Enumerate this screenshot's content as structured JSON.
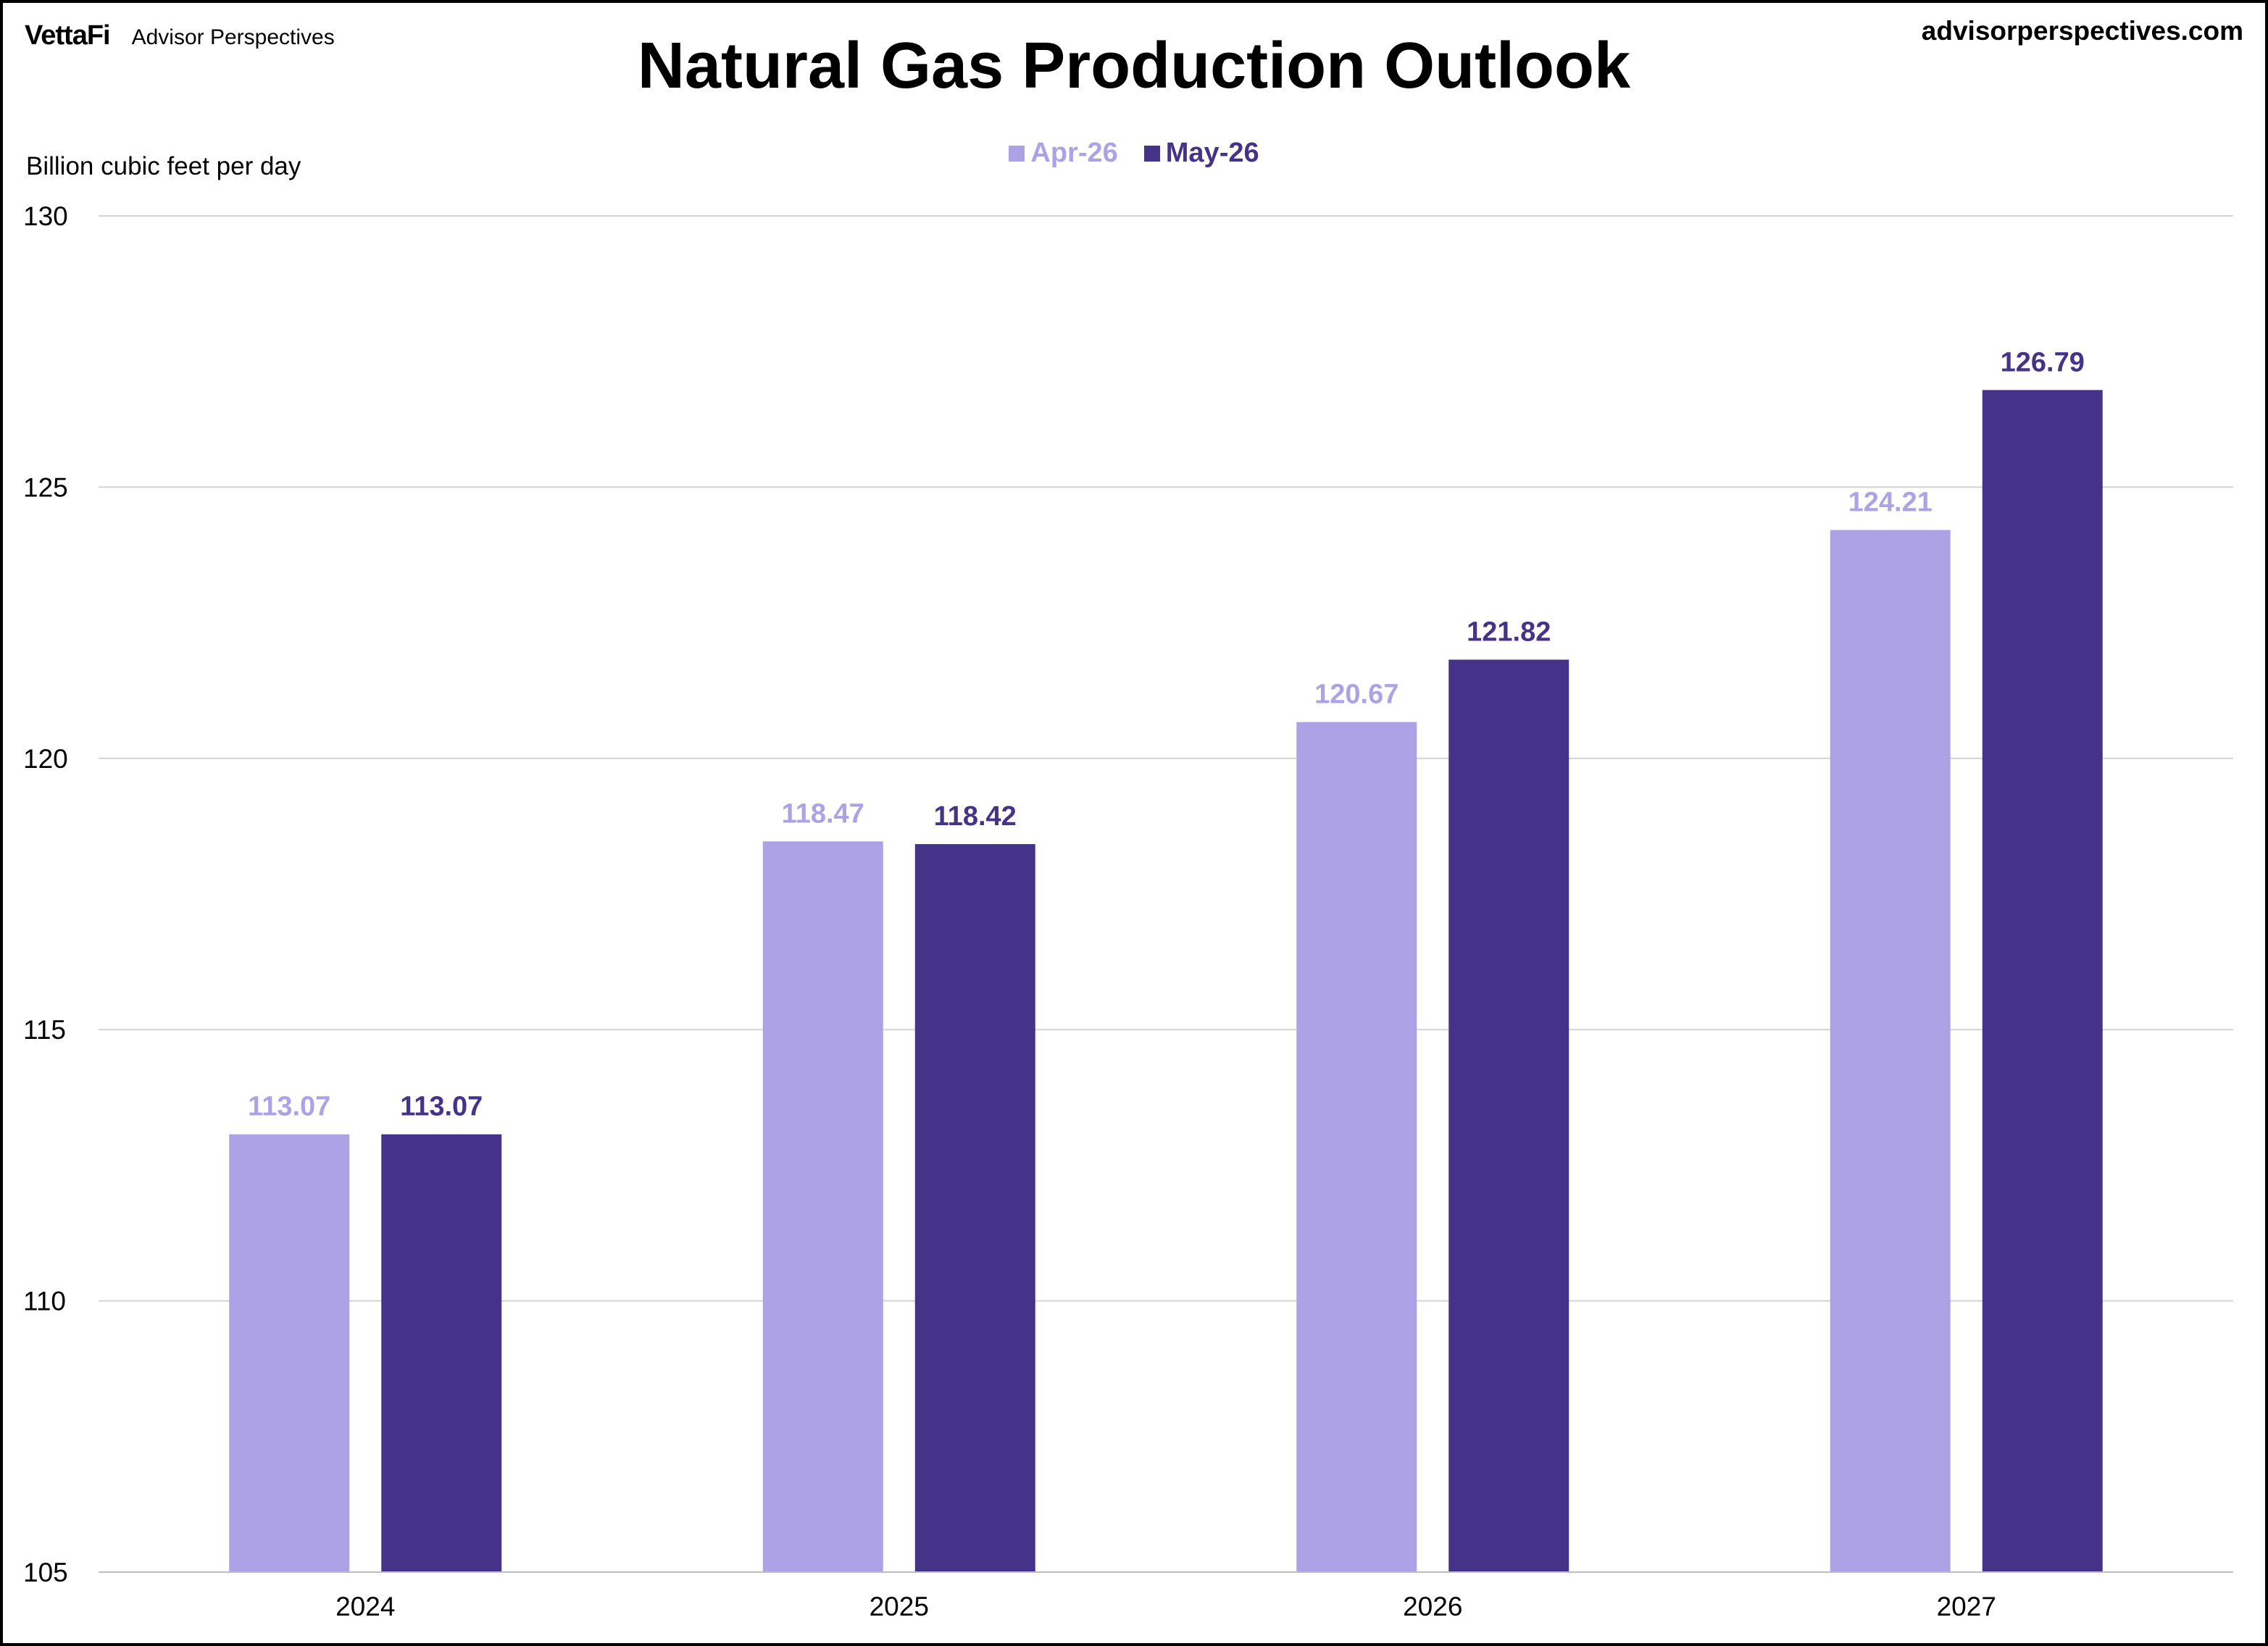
{
  "header": {
    "logo": "VettaFi",
    "brand": "Advisor Perspectives",
    "site": "advisorperspectives.com"
  },
  "chart_data": {
    "type": "bar",
    "title": "Natural Gas Production Outlook",
    "ylabel": "Billion  cubic feet per day",
    "xlabel": "",
    "categories": [
      "2024",
      "2025",
      "2026",
      "2027"
    ],
    "series": [
      {
        "name": "Apr-26",
        "color": "#aea2e7",
        "values": [
          113.07,
          118.47,
          120.67,
          124.21
        ]
      },
      {
        "name": "May-26",
        "color": "#45338a",
        "values": [
          113.07,
          118.42,
          121.82,
          126.79
        ]
      }
    ],
    "ylim": [
      105,
      130
    ],
    "yticks": [
      105,
      110,
      115,
      120,
      125,
      130
    ],
    "grid": true,
    "legend_position": "top-center",
    "data_labels": true
  }
}
